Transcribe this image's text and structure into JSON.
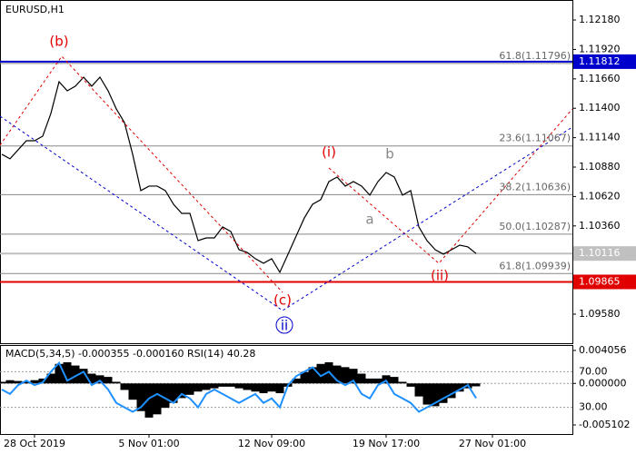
{
  "chart_data": [
    {
      "type": "line",
      "title": "EURUSD,H1",
      "categories": [
        null,
        null,
        null,
        null,
        "28 Oct 2019",
        null,
        null,
        null,
        null,
        null,
        null,
        null,
        null,
        null,
        null,
        null,
        null,
        null,
        "5 Nov 01:00",
        null,
        null,
        null,
        null,
        null,
        null,
        null,
        null,
        null,
        null,
        null,
        null,
        null,
        null,
        "12 Nov 09:00",
        null,
        null,
        null,
        null,
        null,
        null,
        null,
        null,
        null,
        null,
        null,
        null,
        null,
        "19 Nov 17:00",
        null,
        null,
        null,
        null,
        null,
        null,
        null,
        null,
        null,
        null,
        null,
        null,
        "27 Nov 01:00"
      ],
      "values": [
        1.10993,
        1.10953,
        1.11033,
        1.11113,
        1.11113,
        1.11153,
        1.11354,
        1.11635,
        1.11554,
        1.11595,
        1.11675,
        1.11595,
        1.11675,
        1.11554,
        1.11394,
        1.11274,
        1.10993,
        1.10672,
        1.10712,
        1.10712,
        1.10672,
        1.10551,
        1.10471,
        1.10471,
        1.1023,
        1.10254,
        1.10254,
        1.10351,
        1.10311,
        1.1015,
        1.10126,
        1.1007,
        1.1003,
        1.1007,
        1.0995,
        1.1011,
        1.10271,
        1.10431,
        1.10551,
        1.10592,
        1.10752,
        1.10792,
        1.10712,
        1.10752,
        1.10712,
        1.10632,
        1.10752,
        1.10832,
        1.10792,
        1.10632,
        1.10672,
        1.10351,
        1.1023,
        1.1015,
        1.1011,
        1.1015,
        1.1019,
        1.10174,
        1.10116,
        null,
        null
      ],
      "color": "#000000",
      "ylim": [
        1.09323,
        1.12357
      ],
      "yticks": [
        {
          "value": 1.1218,
          "label": "1.12180"
        },
        {
          "value": 1.1192,
          "label": "1.11920"
        },
        {
          "value": 1.1166,
          "label": "1.11660"
        },
        {
          "value": 1.114,
          "label": "1.11400"
        },
        {
          "value": 1.1114,
          "label": "1.11140"
        },
        {
          "value": 1.1088,
          "label": "1.10880"
        },
        {
          "value": 1.1062,
          "label": "1.10620"
        },
        {
          "value": 1.1036,
          "label": "1.10360"
        },
        {
          "value": 1.0958,
          "label": "1.09580"
        }
      ],
      "levels": [
        {
          "value": 1.11812,
          "color": "#0000cc"
        },
        {
          "value": 1.10116,
          "color": "#c0c0c0"
        },
        {
          "value": 1.09865,
          "color": "#e00000"
        }
      ],
      "fibonacci": [
        {
          "value": 1.11796,
          "label": "61.8(1.11796)"
        },
        {
          "value": 1.11067,
          "label": "23.6(1.11067)"
        },
        {
          "value": 1.10636,
          "label": "38.2(1.10636)"
        },
        {
          "value": 1.10287,
          "label": "50.0(1.10287)"
        },
        {
          "value": 1.09939,
          "label": "61.8(1.09939)"
        }
      ],
      "annotations": [
        "(b)",
        "(i)",
        "b",
        "a",
        "(c)",
        "(ii)",
        "ii"
      ]
    },
    {
      "type": "bar",
      "title": "MACD(5,34,5) -0.000355 -0.000160 RSI(14) 40.28",
      "values": [
        0.0002,
        0.0004,
        0.0003,
        0.0002,
        0.0004,
        0.0006,
        0.0012,
        0.0024,
        0.0026,
        0.0022,
        0.0018,
        0.0012,
        0.001,
        0.0008,
        0.0002,
        -0.0008,
        -0.002,
        -0.0034,
        -0.0042,
        -0.0038,
        -0.003,
        -0.0024,
        -0.0018,
        -0.0014,
        -0.001,
        -0.0008,
        -0.0006,
        -0.0004,
        -0.0004,
        -0.0006,
        -0.0008,
        -0.001,
        -0.0012,
        -0.001,
        -0.0012,
        -0.0004,
        0.0006,
        0.0014,
        0.002,
        0.0024,
        0.0026,
        0.0022,
        0.002,
        0.0018,
        0.0012,
        0.0006,
        0.0006,
        0.001,
        0.0008,
        0.0002,
        -0.0004,
        -0.0016,
        -0.0026,
        -0.0028,
        -0.0024,
        -0.0018,
        -0.001,
        -0.0006,
        -0.000355,
        null,
        null
      ],
      "color": "#000000",
      "ylim": [
        -0.00622,
        0.00472
      ],
      "yticks": [
        0.004056,
        {
          "value": 0,
          "label": "0.000000"
        },
        -0.005102
      ],
      "y2_values": [
        50,
        45,
        55,
        60,
        55,
        58,
        70,
        80,
        60,
        65,
        70,
        55,
        60,
        50,
        35,
        30,
        25,
        30,
        40,
        45,
        40,
        35,
        45,
        40,
        30,
        45,
        50,
        45,
        40,
        35,
        40,
        45,
        35,
        40,
        30,
        55,
        65,
        70,
        75,
        65,
        70,
        60,
        55,
        60,
        45,
        40,
        55,
        60,
        45,
        40,
        35,
        25,
        30,
        35,
        40,
        45,
        50,
        55,
        40.28,
        null,
        null
      ],
      "y2_color": "#1e90ff",
      "y2lim": [
        0,
        100
      ],
      "y2ticks": [
        {
          "value": 70,
          "label": "70.00"
        },
        {
          "value": 30,
          "label": "30.00"
        }
      ]
    }
  ]
}
